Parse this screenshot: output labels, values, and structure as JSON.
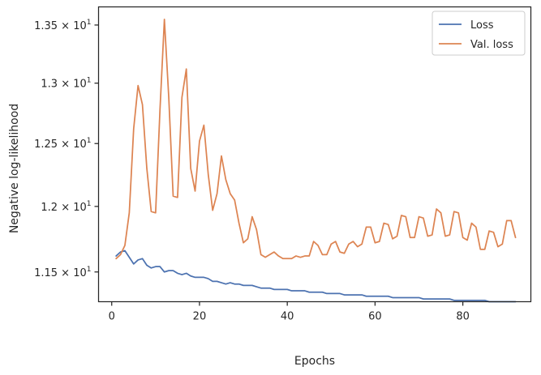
{
  "chart_data": {
    "type": "line",
    "title": "",
    "xlabel": "Epochs",
    "ylabel": "Negative log-likelihood",
    "xlim": [
      -3,
      95.5
    ],
    "ylim": [
      11.28,
      13.66
    ],
    "yscale": "log",
    "grid": false,
    "legend": "top-right",
    "x_ticks": [
      0,
      20,
      40,
      60,
      80
    ],
    "x_tick_labels": [
      "0",
      "20",
      "40",
      "60",
      "80"
    ],
    "y_ticks": [
      11.5,
      12.0,
      12.5,
      13.0,
      13.5
    ],
    "y_tick_mantissas": [
      "1.15",
      "1.2",
      "1.25",
      "1.3",
      "1.35"
    ],
    "y_tick_base": "10",
    "y_tick_exp": "1",
    "series": [
      {
        "name": "Loss",
        "color": "#4c72b0",
        "x": [
          1,
          2,
          3,
          4,
          5,
          6,
          7,
          8,
          9,
          10,
          11,
          12,
          13,
          14,
          15,
          16,
          17,
          18,
          19,
          20,
          21,
          22,
          23,
          24,
          25,
          26,
          27,
          28,
          29,
          30,
          31,
          32,
          33,
          34,
          35,
          36,
          37,
          38,
          39,
          40,
          41,
          42,
          43,
          44,
          45,
          46,
          47,
          48,
          49,
          50,
          51,
          52,
          53,
          54,
          55,
          56,
          57,
          58,
          59,
          60,
          61,
          62,
          63,
          64,
          65,
          66,
          67,
          68,
          69,
          70,
          71,
          72,
          73,
          74,
          75,
          76,
          77,
          78,
          79,
          80,
          81,
          82,
          83,
          84,
          85,
          86,
          87,
          88,
          89,
          90,
          91,
          92
        ],
        "values": [
          11.62,
          11.65,
          11.66,
          11.61,
          11.56,
          11.59,
          11.6,
          11.55,
          11.53,
          11.54,
          11.54,
          11.5,
          11.51,
          11.51,
          11.49,
          11.48,
          11.49,
          11.47,
          11.46,
          11.46,
          11.46,
          11.45,
          11.43,
          11.43,
          11.42,
          11.41,
          11.42,
          11.41,
          11.41,
          11.4,
          11.4,
          11.4,
          11.39,
          11.38,
          11.38,
          11.38,
          11.37,
          11.37,
          11.37,
          11.37,
          11.36,
          11.36,
          11.36,
          11.36,
          11.35,
          11.35,
          11.35,
          11.35,
          11.34,
          11.34,
          11.34,
          11.34,
          11.33,
          11.33,
          11.33,
          11.33,
          11.33,
          11.32,
          11.32,
          11.32,
          11.32,
          11.32,
          11.32,
          11.31,
          11.31,
          11.31,
          11.31,
          11.31,
          11.31,
          11.31,
          11.3,
          11.3,
          11.3,
          11.3,
          11.3,
          11.3,
          11.3,
          11.29,
          11.29,
          11.29,
          11.29,
          11.29,
          11.29,
          11.29,
          11.29,
          11.28,
          11.28,
          11.28,
          11.28,
          11.28,
          11.28,
          11.28
        ]
      },
      {
        "name": "Val. loss",
        "color": "#dd8452",
        "x": [
          1,
          2,
          3,
          4,
          5,
          6,
          7,
          8,
          9,
          10,
          11,
          12,
          13,
          14,
          15,
          16,
          17,
          18,
          19,
          20,
          21,
          22,
          23,
          24,
          25,
          26,
          27,
          28,
          29,
          30,
          31,
          32,
          33,
          34,
          35,
          36,
          37,
          38,
          39,
          40,
          41,
          42,
          43,
          44,
          45,
          46,
          47,
          48,
          49,
          50,
          51,
          52,
          53,
          54,
          55,
          56,
          57,
          58,
          59,
          60,
          61,
          62,
          63,
          64,
          65,
          66,
          67,
          68,
          69,
          70,
          71,
          72,
          73,
          74,
          75,
          76,
          77,
          78,
          79,
          80,
          81,
          82,
          83,
          84,
          85,
          86,
          87,
          88,
          89,
          90,
          91,
          92
        ],
        "values": [
          11.6,
          11.63,
          11.7,
          11.95,
          12.62,
          12.98,
          12.82,
          12.3,
          11.96,
          11.95,
          12.78,
          13.55,
          12.88,
          12.08,
          12.07,
          12.88,
          13.12,
          12.3,
          12.12,
          12.52,
          12.65,
          12.25,
          11.97,
          12.1,
          12.4,
          12.21,
          12.1,
          12.05,
          11.87,
          11.72,
          11.75,
          11.92,
          11.82,
          11.63,
          11.61,
          11.63,
          11.65,
          11.62,
          11.6,
          11.6,
          11.6,
          11.62,
          11.61,
          11.62,
          11.62,
          11.73,
          11.7,
          11.63,
          11.63,
          11.71,
          11.73,
          11.65,
          11.64,
          11.71,
          11.73,
          11.69,
          11.71,
          11.84,
          11.84,
          11.72,
          11.73,
          11.87,
          11.86,
          11.75,
          11.77,
          11.93,
          11.92,
          11.76,
          11.76,
          11.92,
          11.91,
          11.77,
          11.78,
          11.98,
          11.95,
          11.77,
          11.78,
          11.96,
          11.95,
          11.76,
          11.74,
          11.87,
          11.84,
          11.67,
          11.67,
          11.81,
          11.8,
          11.69,
          11.71,
          11.89,
          11.89,
          11.76
        ]
      }
    ]
  }
}
